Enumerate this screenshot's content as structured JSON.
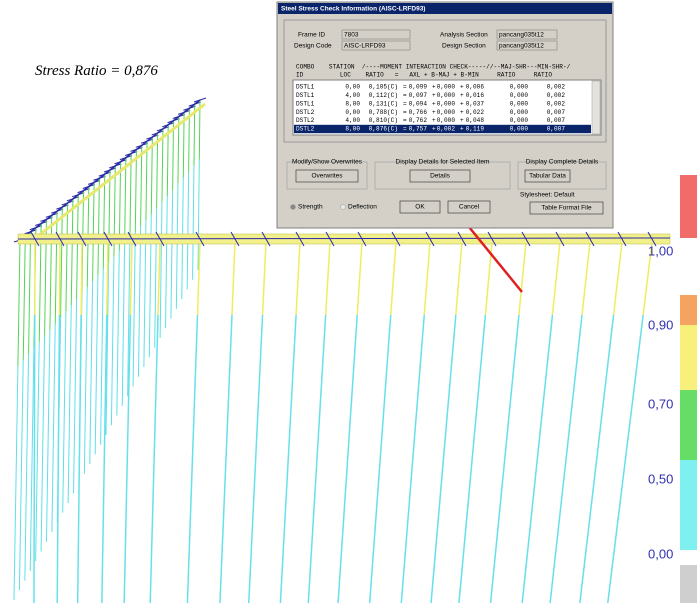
{
  "annotation": "Stress Ratio = 0,876",
  "dialog": {
    "title": "Steel Stress Check Information (AISC-LRFD93)",
    "fields": [
      {
        "label": "Frame ID",
        "value": "7803"
      },
      {
        "label": "Design Code",
        "value": "AISC-LRFD93"
      },
      {
        "label": "Analysis Section",
        "value": "pancang035t12"
      },
      {
        "label": "Design Section",
        "value": "pancang035t12"
      }
    ],
    "table": {
      "header": [
        "COMBO    STATION  /----MOMENT INTERACTION CHECK-----//--MAJ-SHR---MIN-SHR-/",
        "ID          LOC    RATIO   =   AXL + B-MAJ + B-MIN     RATIO     RATIO"
      ],
      "rows": [
        [
          "DSTL1",
          "0,00",
          "0,105(C)",
          "=",
          "0,099",
          "+",
          "0,000",
          "+",
          "0,006",
          "0,000",
          "0,002"
        ],
        [
          "DSTL1",
          "4,00",
          "0,112(C)",
          "=",
          "0,097",
          "+",
          "0,000",
          "+",
          "0,016",
          "0,000",
          "0,002"
        ],
        [
          "DSTL1",
          "8,00",
          "0,131(C)",
          "=",
          "0,094",
          "+",
          "0,000",
          "+",
          "0,037",
          "0,000",
          "0,002"
        ],
        [
          "DSTL2",
          "0,00",
          "0,788(C)",
          "=",
          "0,766",
          "+",
          "0,000",
          "+",
          "0,022",
          "0,000",
          "0,007"
        ],
        [
          "DSTL2",
          "4,00",
          "0,810(C)",
          "=",
          "0,762",
          "+",
          "0,000",
          "+",
          "0,048",
          "0,000",
          "0,007"
        ],
        [
          "DSTL2",
          "8,00",
          "0,876(C)",
          "=",
          "0,757",
          "+",
          "0,002",
          "+",
          "0,119",
          "0,000",
          "0,007"
        ]
      ],
      "selected_row": 5
    },
    "groups": [
      {
        "label": "Modify/Show Overwrites",
        "button": "Overwrites"
      },
      {
        "label": "Display Details for Selected Item",
        "button": "Details"
      },
      {
        "label": "Display Complete Details",
        "button": "Tabular Data"
      }
    ],
    "radios": [
      "Strength",
      "Deflection"
    ],
    "ok": "OK",
    "cancel": "Cancel",
    "stylesheet": "Stylesheet: Default",
    "format_button": "Table Format File"
  },
  "legend_labels": [
    "1,00",
    "0,90",
    "0,70",
    "0,50",
    "0,00"
  ]
}
